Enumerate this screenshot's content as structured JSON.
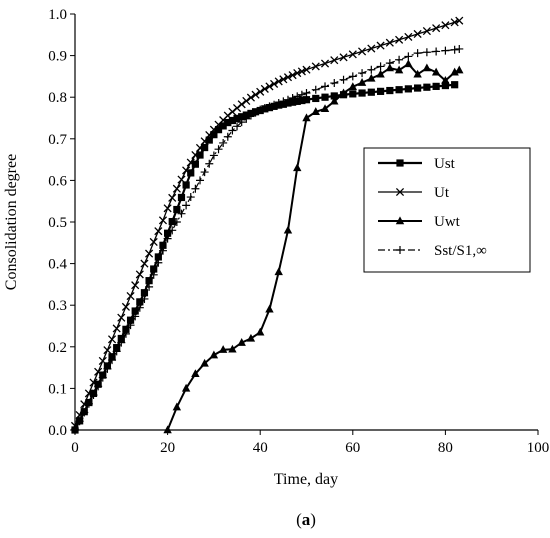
{
  "chart_data": {
    "type": "line",
    "title": "",
    "xlabel": "Time, day",
    "ylabel": "Consolidation degree",
    "caption_open": "(",
    "caption_letter": "a",
    "caption_close": ")",
    "xlim": [
      0,
      100
    ],
    "ylim": [
      0,
      1.0
    ],
    "xticks": [
      0,
      20,
      40,
      60,
      80,
      100
    ],
    "xtick_labels": [
      "0",
      "20",
      "40",
      "60",
      "80",
      "100"
    ],
    "yticks": [
      0,
      0.1,
      0.2,
      0.3,
      0.4,
      0.5,
      0.6,
      0.7,
      0.8,
      0.9,
      1.0
    ],
    "ytick_labels": [
      "0.0",
      "0.1",
      "0.2",
      "0.3",
      "0.4",
      "0.5",
      "0.6",
      "0.7",
      "0.8",
      "0.9",
      "1.0"
    ],
    "grid": false,
    "legend_position": "right",
    "series": [
      {
        "name": "Ust",
        "marker": "square",
        "dash": "solid",
        "x": [
          0,
          1,
          2,
          3,
          4,
          5,
          6,
          7,
          8,
          9,
          10,
          11,
          12,
          13,
          14,
          15,
          16,
          17,
          18,
          19,
          20,
          21,
          22,
          23,
          24,
          25,
          26,
          27,
          28,
          29,
          30,
          31,
          32,
          33,
          34,
          35,
          36,
          37,
          38,
          39,
          40,
          41,
          42,
          43,
          44,
          45,
          46,
          47,
          48,
          49,
          50,
          52,
          54,
          56,
          58,
          60,
          62,
          64,
          66,
          68,
          70,
          72,
          74,
          76,
          78,
          80,
          82
        ],
        "y": [
          0.0,
          0.022,
          0.044,
          0.066,
          0.088,
          0.11,
          0.132,
          0.154,
          0.176,
          0.198,
          0.22,
          0.242,
          0.264,
          0.286,
          0.308,
          0.33,
          0.359,
          0.387,
          0.416,
          0.444,
          0.473,
          0.501,
          0.53,
          0.559,
          0.589,
          0.618,
          0.639,
          0.661,
          0.679,
          0.697,
          0.71,
          0.722,
          0.731,
          0.739,
          0.744,
          0.749,
          0.753,
          0.757,
          0.761,
          0.765,
          0.768,
          0.772,
          0.775,
          0.778,
          0.781,
          0.783,
          0.786,
          0.788,
          0.79,
          0.792,
          0.794,
          0.797,
          0.8,
          0.803,
          0.806,
          0.808,
          0.81,
          0.812,
          0.814,
          0.816,
          0.818,
          0.82,
          0.822,
          0.824,
          0.826,
          0.828,
          0.83
        ]
      },
      {
        "name": "Ut",
        "marker": "x",
        "dash": "solid",
        "x": [
          0,
          1,
          2,
          3,
          4,
          5,
          6,
          7,
          8,
          9,
          10,
          11,
          12,
          13,
          14,
          15,
          16,
          17,
          18,
          19,
          20,
          21,
          22,
          23,
          24,
          25,
          26,
          27,
          28,
          29,
          30,
          31,
          32,
          33,
          34,
          35,
          36,
          37,
          38,
          39,
          40,
          41,
          42,
          43,
          44,
          45,
          46,
          47,
          48,
          49,
          50,
          52,
          54,
          56,
          58,
          60,
          62,
          64,
          66,
          68,
          70,
          72,
          74,
          76,
          78,
          80,
          82,
          83
        ],
        "y": [
          0.01,
          0.036,
          0.062,
          0.088,
          0.114,
          0.14,
          0.166,
          0.192,
          0.218,
          0.244,
          0.27,
          0.296,
          0.322,
          0.348,
          0.374,
          0.4,
          0.424,
          0.452,
          0.478,
          0.504,
          0.533,
          0.558,
          0.58,
          0.602,
          0.624,
          0.643,
          0.661,
          0.678,
          0.694,
          0.709,
          0.722,
          0.734,
          0.745,
          0.756,
          0.765,
          0.774,
          0.783,
          0.791,
          0.799,
          0.806,
          0.813,
          0.82,
          0.826,
          0.832,
          0.838,
          0.843,
          0.848,
          0.853,
          0.858,
          0.862,
          0.866,
          0.874,
          0.881,
          0.889,
          0.896,
          0.903,
          0.91,
          0.917,
          0.924,
          0.931,
          0.938,
          0.945,
          0.952,
          0.959,
          0.966,
          0.973,
          0.98,
          0.984
        ]
      },
      {
        "name": "Uwt",
        "marker": "triangle",
        "dash": "solid",
        "x": [
          20,
          22,
          24,
          26,
          28,
          30,
          32,
          34,
          36,
          38,
          40,
          42,
          44,
          46,
          48,
          50,
          52,
          54,
          56,
          58,
          60,
          62,
          64,
          66,
          68,
          70,
          72,
          74,
          76,
          78,
          80,
          82,
          83
        ],
        "y": [
          0.0,
          0.055,
          0.1,
          0.135,
          0.16,
          0.18,
          0.193,
          0.194,
          0.21,
          0.22,
          0.235,
          0.29,
          0.38,
          0.48,
          0.63,
          0.75,
          0.765,
          0.772,
          0.79,
          0.81,
          0.825,
          0.835,
          0.845,
          0.855,
          0.87,
          0.865,
          0.88,
          0.855,
          0.87,
          0.86,
          0.84,
          0.86,
          0.865
        ]
      },
      {
        "name": "Sst/S1,∞",
        "marker": "plus",
        "dash": "dashdot",
        "x": [
          0,
          1,
          2,
          3,
          4,
          5,
          6,
          7,
          8,
          9,
          10,
          11,
          12,
          13,
          14,
          15,
          16,
          17,
          18,
          19,
          20,
          21,
          22,
          23,
          24,
          25,
          26,
          27,
          28,
          29,
          30,
          31,
          32,
          33,
          34,
          35,
          36,
          37,
          38,
          39,
          40,
          41,
          42,
          43,
          44,
          45,
          46,
          47,
          48,
          49,
          50,
          52,
          54,
          56,
          58,
          60,
          62,
          64,
          66,
          68,
          70,
          72,
          74,
          76,
          78,
          80,
          82,
          83
        ],
        "y": [
          0.0,
          0.021,
          0.042,
          0.063,
          0.084,
          0.105,
          0.126,
          0.147,
          0.168,
          0.189,
          0.21,
          0.231,
          0.252,
          0.273,
          0.294,
          0.315,
          0.344,
          0.373,
          0.402,
          0.431,
          0.46,
          0.48,
          0.5,
          0.52,
          0.54,
          0.56,
          0.58,
          0.6,
          0.62,
          0.64,
          0.66,
          0.675,
          0.69,
          0.705,
          0.72,
          0.73,
          0.74,
          0.748,
          0.756,
          0.763,
          0.77,
          0.774,
          0.778,
          0.782,
          0.786,
          0.79,
          0.794,
          0.798,
          0.802,
          0.806,
          0.81,
          0.818,
          0.826,
          0.834,
          0.842,
          0.85,
          0.858,
          0.866,
          0.874,
          0.882,
          0.89,
          0.898,
          0.906,
          0.908,
          0.91,
          0.912,
          0.914,
          0.916
        ]
      }
    ]
  }
}
